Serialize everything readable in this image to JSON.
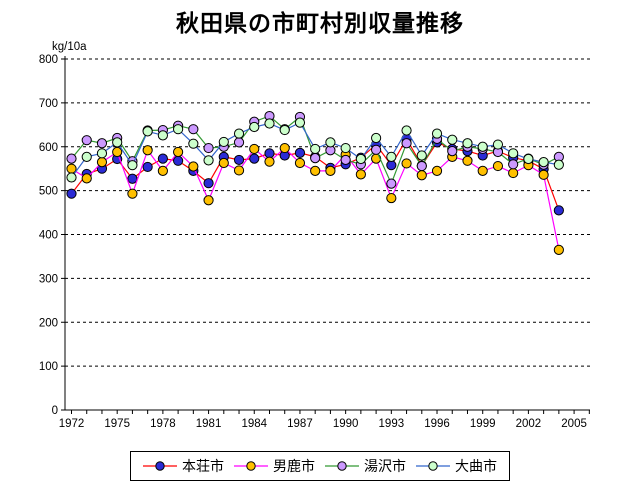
{
  "title": "秋田県の市町村別収量推移",
  "y_axis": {
    "unit_label": "kg/10a",
    "min": 0,
    "max": 800,
    "step": 100
  },
  "x_axis": {
    "tick_labels": [
      "1972",
      "1975",
      "1978",
      "1981",
      "1984",
      "1987",
      "1990",
      "1993",
      "1996",
      "1999",
      "2002",
      "2005"
    ]
  },
  "chart_data": {
    "type": "line",
    "title": "秋田県の市町村別収量推移",
    "ylabel": "kg/10a",
    "ylim": [
      0,
      800
    ],
    "y_step": 100,
    "grid": "horizontal-dashed-black",
    "legend_position": "bottom-center",
    "x": [
      1972,
      1973,
      1974,
      1975,
      1976,
      1977,
      1978,
      1979,
      1980,
      1981,
      1982,
      1983,
      1984,
      1985,
      1986,
      1987,
      1988,
      1989,
      1990,
      1991,
      1992,
      1993,
      1994,
      1995,
      1996,
      1997,
      1998,
      1999,
      2000,
      2001,
      2002,
      2003,
      2004
    ],
    "x_axis_end_year": 2006,
    "x_label_years": [
      1972,
      1975,
      1978,
      1981,
      1984,
      1987,
      1990,
      1993,
      1996,
      1999,
      2002,
      2005
    ],
    "series": [
      {
        "name": "本荘市",
        "line_color": "#FF0000",
        "marker_color": "#2B2BD5",
        "marker_outline": "#000000",
        "values": [
          493,
          538,
          550,
          572,
          527,
          554,
          573,
          568,
          545,
          517,
          577,
          570,
          573,
          585,
          580,
          586,
          577,
          552,
          560,
          575,
          605,
          558,
          618,
          557,
          610,
          595,
          590,
          580,
          590,
          575,
          568,
          549,
          455
        ]
      },
      {
        "name": "男鹿市",
        "line_color": "#FF00FF",
        "marker_color": "#FFC000",
        "marker_outline": "#000000",
        "values": [
          550,
          528,
          565,
          588,
          493,
          592,
          545,
          588,
          555,
          478,
          563,
          546,
          595,
          566,
          597,
          563,
          545,
          545,
          582,
          537,
          573,
          483,
          562,
          535,
          545,
          577,
          568,
          545,
          556,
          540,
          558,
          536,
          365
        ]
      },
      {
        "name": "湯沢市",
        "line_color": "#339933",
        "marker_color": "#CC99FF",
        "marker_outline": "#000000",
        "values": [
          573,
          615,
          608,
          620,
          567,
          637,
          638,
          648,
          640,
          597,
          600,
          610,
          657,
          670,
          640,
          668,
          574,
          592,
          570,
          560,
          593,
          516,
          608,
          556,
          618,
          590,
          600,
          595,
          588,
          560,
          573,
          559,
          577
        ]
      },
      {
        "name": "大曲市",
        "line_color": "#3366CC",
        "marker_color": "#CCFFCC",
        "marker_outline": "#000000",
        "values": [
          530,
          577,
          585,
          610,
          558,
          635,
          626,
          640,
          607,
          569,
          611,
          630,
          645,
          653,
          638,
          655,
          595,
          610,
          597,
          572,
          620,
          577,
          637,
          580,
          630,
          616,
          608,
          600,
          605,
          585,
          572,
          565,
          559
        ]
      }
    ]
  }
}
